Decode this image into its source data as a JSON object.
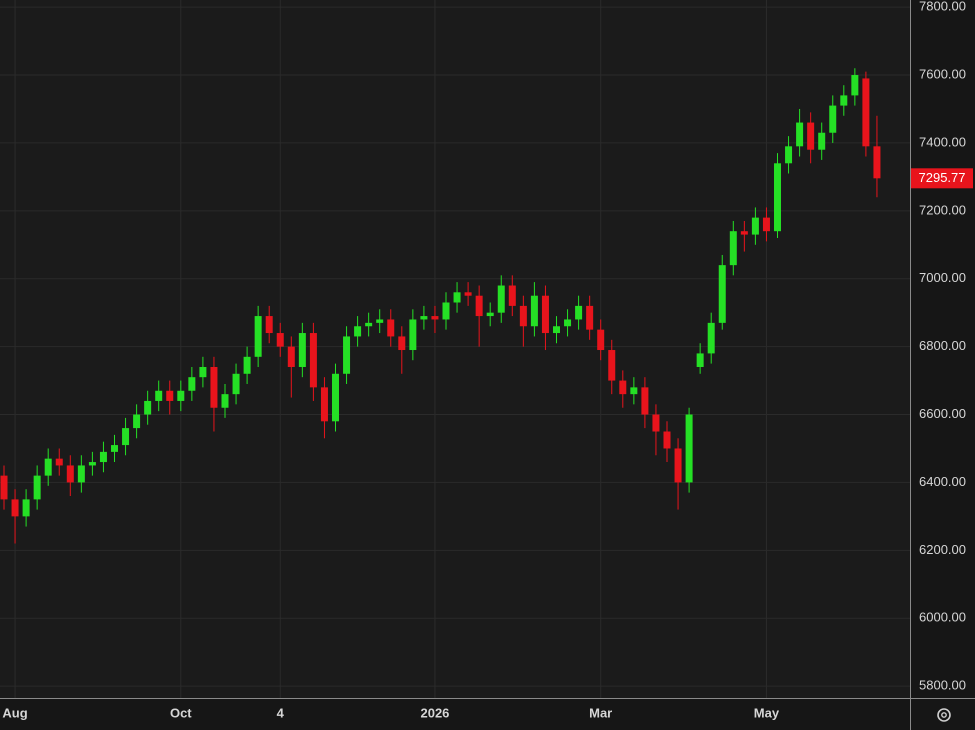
{
  "chart_data": {
    "type": "candlestick",
    "categories": [
      null,
      "Aug",
      null,
      null,
      null,
      null,
      null,
      null,
      null,
      null,
      null,
      null,
      null,
      null,
      null,
      null,
      "Oct",
      null,
      null,
      null,
      null,
      null,
      null,
      null,
      null,
      "4",
      null,
      null,
      null,
      null,
      null,
      null,
      null,
      null,
      null,
      null,
      null,
      null,
      null,
      "2026",
      null,
      null,
      null,
      null,
      null,
      null,
      null,
      null,
      null,
      null,
      null,
      null,
      null,
      null,
      "Mar",
      null,
      null,
      null,
      null,
      null,
      null,
      null,
      null,
      null,
      null,
      null,
      null,
      null,
      null,
      "May",
      null,
      null,
      null,
      null,
      null,
      null,
      null,
      null,
      null,
      null
    ],
    "open": [
      6420,
      6350,
      6300,
      6350,
      6420,
      6470,
      6450,
      6400,
      6450,
      6460,
      6490,
      6510,
      6560,
      6600,
      6640,
      6670,
      6640,
      6670,
      6710,
      6740,
      6620,
      6660,
      6720,
      6770,
      6890,
      6840,
      6800,
      6740,
      6840,
      6680,
      6580,
      6720,
      6830,
      6860,
      6870,
      6880,
      6830,
      6790,
      6880,
      6890,
      6880,
      6930,
      6960,
      6950,
      6890,
      6900,
      6980,
      6920,
      6860,
      6950,
      6840,
      6860,
      6880,
      6920,
      6850,
      6790,
      6700,
      6660,
      6680,
      6600,
      6550,
      6500,
      6400,
      6740,
      6780,
      6870,
      7040,
      7140,
      7130,
      7180,
      7140,
      7340,
      7390,
      7460,
      7380,
      7430,
      7510,
      7540,
      7590,
      7390
    ],
    "high": [
      6450,
      6380,
      6380,
      6450,
      6500,
      6500,
      6480,
      6480,
      6490,
      6520,
      6540,
      6590,
      6630,
      6670,
      6700,
      6700,
      6700,
      6740,
      6770,
      6770,
      6690,
      6750,
      6800,
      6920,
      6920,
      6870,
      6830,
      6870,
      6870,
      6710,
      6750,
      6860,
      6890,
      6900,
      6910,
      6910,
      6860,
      6910,
      6920,
      6920,
      6960,
      6990,
      6990,
      6980,
      6930,
      7010,
      7010,
      6950,
      6990,
      6980,
      6890,
      6910,
      6950,
      6950,
      6880,
      6820,
      6730,
      6710,
      6710,
      6630,
      6580,
      6530,
      6620,
      6810,
      6900,
      7070,
      7170,
      7170,
      7210,
      7210,
      7370,
      7420,
      7500,
      7490,
      7460,
      7540,
      7570,
      7620,
      7610,
      7480
    ],
    "low": [
      6320,
      6220,
      6270,
      6320,
      6390,
      6420,
      6360,
      6370,
      6420,
      6430,
      6460,
      6480,
      6530,
      6570,
      6610,
      6600,
      6610,
      6640,
      6680,
      6550,
      6590,
      6630,
      6690,
      6740,
      6810,
      6770,
      6650,
      6710,
      6640,
      6530,
      6550,
      6690,
      6800,
      6830,
      6840,
      6800,
      6720,
      6760,
      6850,
      6840,
      6850,
      6900,
      6920,
      6800,
      6860,
      6870,
      6890,
      6800,
      6830,
      6790,
      6810,
      6830,
      6850,
      6820,
      6760,
      6660,
      6620,
      6630,
      6560,
      6480,
      6460,
      6320,
      6370,
      6720,
      6750,
      6850,
      7010,
      7080,
      7100,
      7110,
      7120,
      7310,
      7360,
      7340,
      7350,
      7400,
      7480,
      7510,
      7360,
      7240
    ],
    "close": [
      6350,
      6300,
      6350,
      6420,
      6470,
      6450,
      6400,
      6450,
      6460,
      6490,
      6510,
      6560,
      6600,
      6640,
      6670,
      6640,
      6670,
      6710,
      6740,
      6620,
      6660,
      6720,
      6770,
      6890,
      6840,
      6800,
      6740,
      6840,
      6680,
      6580,
      6720,
      6830,
      6860,
      6870,
      6880,
      6830,
      6790,
      6880,
      6890,
      6880,
      6930,
      6960,
      6950,
      6890,
      6900,
      6980,
      6920,
      6860,
      6950,
      6840,
      6860,
      6880,
      6920,
      6850,
      6790,
      6700,
      6660,
      6680,
      6600,
      6550,
      6500,
      6400,
      6600,
      6780,
      6870,
      7040,
      7140,
      7130,
      7180,
      7140,
      7340,
      7390,
      7460,
      7380,
      7430,
      7510,
      7540,
      7600,
      7390,
      7295.77
    ],
    "up_color": "#25e025",
    "down_color": "#e8141c",
    "ylim": [
      5765,
      7821
    ],
    "yticks": [
      {
        "value": 5800,
        "label": "5800.00"
      },
      {
        "value": 6000,
        "label": "6000.00"
      },
      {
        "value": 6200,
        "label": "6200.00"
      },
      {
        "value": 6400,
        "label": "6400.00"
      },
      {
        "value": 6600,
        "label": "6600.00"
      },
      {
        "value": 6800,
        "label": "6800.00"
      },
      {
        "value": 7000,
        "label": "7000.00"
      },
      {
        "value": 7200,
        "label": "7200.00"
      },
      {
        "value": 7400,
        "label": "7400.00"
      },
      {
        "value": 7600,
        "label": "7600.00"
      },
      {
        "value": 7800,
        "label": "7800.00"
      }
    ],
    "grid": true
  }
}
